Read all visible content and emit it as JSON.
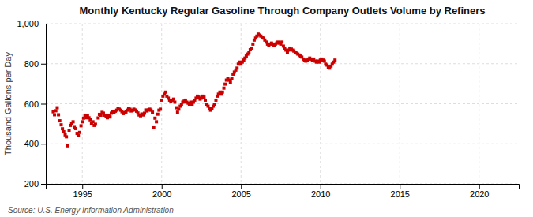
{
  "chart_data": {
    "type": "scatter",
    "title": "Monthly Kentucky Regular Gasoline Through Company Outlets Volume by Refiners",
    "ylabel": "Thousand Gallons per Day",
    "source": "Source: U.S. Energy Information Administration",
    "color": "#cc0000",
    "marker": "square",
    "grid": true,
    "xlim": [
      1992.7,
      2022.5
    ],
    "xticks": [
      1995,
      2000,
      2005,
      2010,
      2015,
      2020
    ],
    "ylim": [
      200,
      1000
    ],
    "yticks": [
      200,
      400,
      600,
      800,
      {
        "value": 1000,
        "label": "1,000"
      }
    ],
    "x": [
      1993.17,
      1993.25,
      1993.33,
      1993.42,
      1993.5,
      1993.58,
      1993.67,
      1993.75,
      1993.83,
      1993.92,
      1994.0,
      1994.08,
      1994.17,
      1994.25,
      1994.33,
      1994.42,
      1994.5,
      1994.58,
      1994.67,
      1994.75,
      1994.83,
      1994.92,
      1995.0,
      1995.08,
      1995.17,
      1995.25,
      1995.33,
      1995.42,
      1995.5,
      1995.58,
      1995.67,
      1995.75,
      1995.83,
      1996.0,
      1996.08,
      1996.17,
      1996.25,
      1996.33,
      1996.42,
      1996.5,
      1996.58,
      1996.67,
      1996.75,
      1996.83,
      1996.92,
      1997.0,
      1997.08,
      1997.17,
      1997.25,
      1997.33,
      1997.42,
      1997.5,
      1997.58,
      1997.67,
      1997.75,
      1997.83,
      1997.92,
      1998.0,
      1998.08,
      1998.17,
      1998.25,
      1998.33,
      1998.42,
      1998.5,
      1998.58,
      1998.67,
      1998.75,
      1998.83,
      1998.92,
      1999.0,
      1999.08,
      1999.17,
      1999.25,
      1999.33,
      1999.42,
      1999.5,
      1999.58,
      1999.67,
      1999.75,
      1999.83,
      1999.92,
      2000.0,
      2000.08,
      2000.17,
      2000.25,
      2000.33,
      2000.42,
      2000.5,
      2000.58,
      2000.67,
      2000.75,
      2000.83,
      2000.92,
      2001.0,
      2001.08,
      2001.17,
      2001.25,
      2001.33,
      2001.42,
      2001.5,
      2001.58,
      2001.67,
      2001.75,
      2001.83,
      2001.92,
      2002.0,
      2002.08,
      2002.17,
      2002.25,
      2002.33,
      2002.42,
      2002.5,
      2002.58,
      2002.67,
      2002.75,
      2002.83,
      2002.92,
      2003.0,
      2003.08,
      2003.17,
      2003.25,
      2003.33,
      2003.42,
      2003.5,
      2003.58,
      2003.67,
      2003.75,
      2003.83,
      2003.92,
      2004.0,
      2004.08,
      2004.17,
      2004.25,
      2004.33,
      2004.42,
      2004.5,
      2004.58,
      2004.67,
      2004.75,
      2004.83,
      2004.92,
      2005.0,
      2005.08,
      2005.17,
      2005.25,
      2005.33,
      2005.42,
      2005.5,
      2005.58,
      2005.67,
      2005.75,
      2005.83,
      2005.92,
      2006.0,
      2006.08,
      2006.17,
      2006.25,
      2006.33,
      2006.42,
      2006.5,
      2006.58,
      2006.67,
      2006.75,
      2006.83,
      2006.92,
      2007.0,
      2007.08,
      2007.17,
      2007.25,
      2007.33,
      2007.42,
      2007.5,
      2007.58,
      2007.67,
      2007.75,
      2007.83,
      2007.92,
      2008.0,
      2008.08,
      2008.17,
      2008.25,
      2008.33,
      2008.42,
      2008.5,
      2008.58,
      2008.67,
      2008.75,
      2008.83,
      2008.92,
      2009.0,
      2009.08,
      2009.17,
      2009.25,
      2009.33,
      2009.42,
      2009.5,
      2009.58,
      2009.67,
      2009.75,
      2009.83,
      2009.92,
      2010.0,
      2010.08,
      2010.17,
      2010.25,
      2010.33,
      2010.42,
      2010.5,
      2010.58,
      2010.67,
      2010.75,
      2010.83,
      2010.92
    ],
    "values": [
      560,
      545,
      565,
      580,
      545,
      515,
      495,
      475,
      460,
      445,
      435,
      390,
      468,
      492,
      500,
      510,
      482,
      476,
      452,
      441,
      457,
      490,
      510,
      528,
      543,
      530,
      540,
      530,
      520,
      502,
      510,
      492,
      498,
      529,
      547,
      543,
      557,
      553,
      543,
      539,
      530,
      543,
      534,
      553,
      562,
      558,
      563,
      568,
      578,
      573,
      568,
      560,
      551,
      555,
      559,
      568,
      578,
      573,
      564,
      568,
      573,
      569,
      563,
      554,
      544,
      540,
      549,
      544,
      553,
      569,
      564,
      569,
      573,
      568,
      558,
      480,
      528,
      510,
      548,
      568,
      573,
      618,
      638,
      648,
      658,
      638,
      628,
      618,
      613,
      618,
      623,
      608,
      580,
      558,
      573,
      588,
      598,
      608,
      613,
      618,
      608,
      603,
      598,
      608,
      598,
      608,
      618,
      628,
      638,
      633,
      623,
      628,
      638,
      633,
      618,
      598,
      588,
      578,
      568,
      578,
      588,
      598,
      618,
      638,
      648,
      658,
      648,
      658,
      678,
      698,
      718,
      728,
      718,
      708,
      728,
      748,
      758,
      768,
      778,
      798,
      808,
      798,
      808,
      818,
      828,
      838,
      848,
      858,
      870,
      878,
      898,
      918,
      928,
      938,
      948,
      943,
      938,
      933,
      928,
      918,
      908,
      898,
      893,
      898,
      903,
      898,
      893,
      898,
      903,
      908,
      903,
      898,
      908,
      888,
      878,
      868,
      858,
      868,
      878,
      873,
      868,
      863,
      858,
      853,
      848,
      843,
      838,
      833,
      823,
      818,
      813,
      818,
      823,
      828,
      823,
      818,
      823,
      813,
      808,
      813,
      808,
      818,
      823,
      818,
      813,
      798,
      793,
      783,
      778,
      788,
      798,
      808,
      818
    ]
  }
}
